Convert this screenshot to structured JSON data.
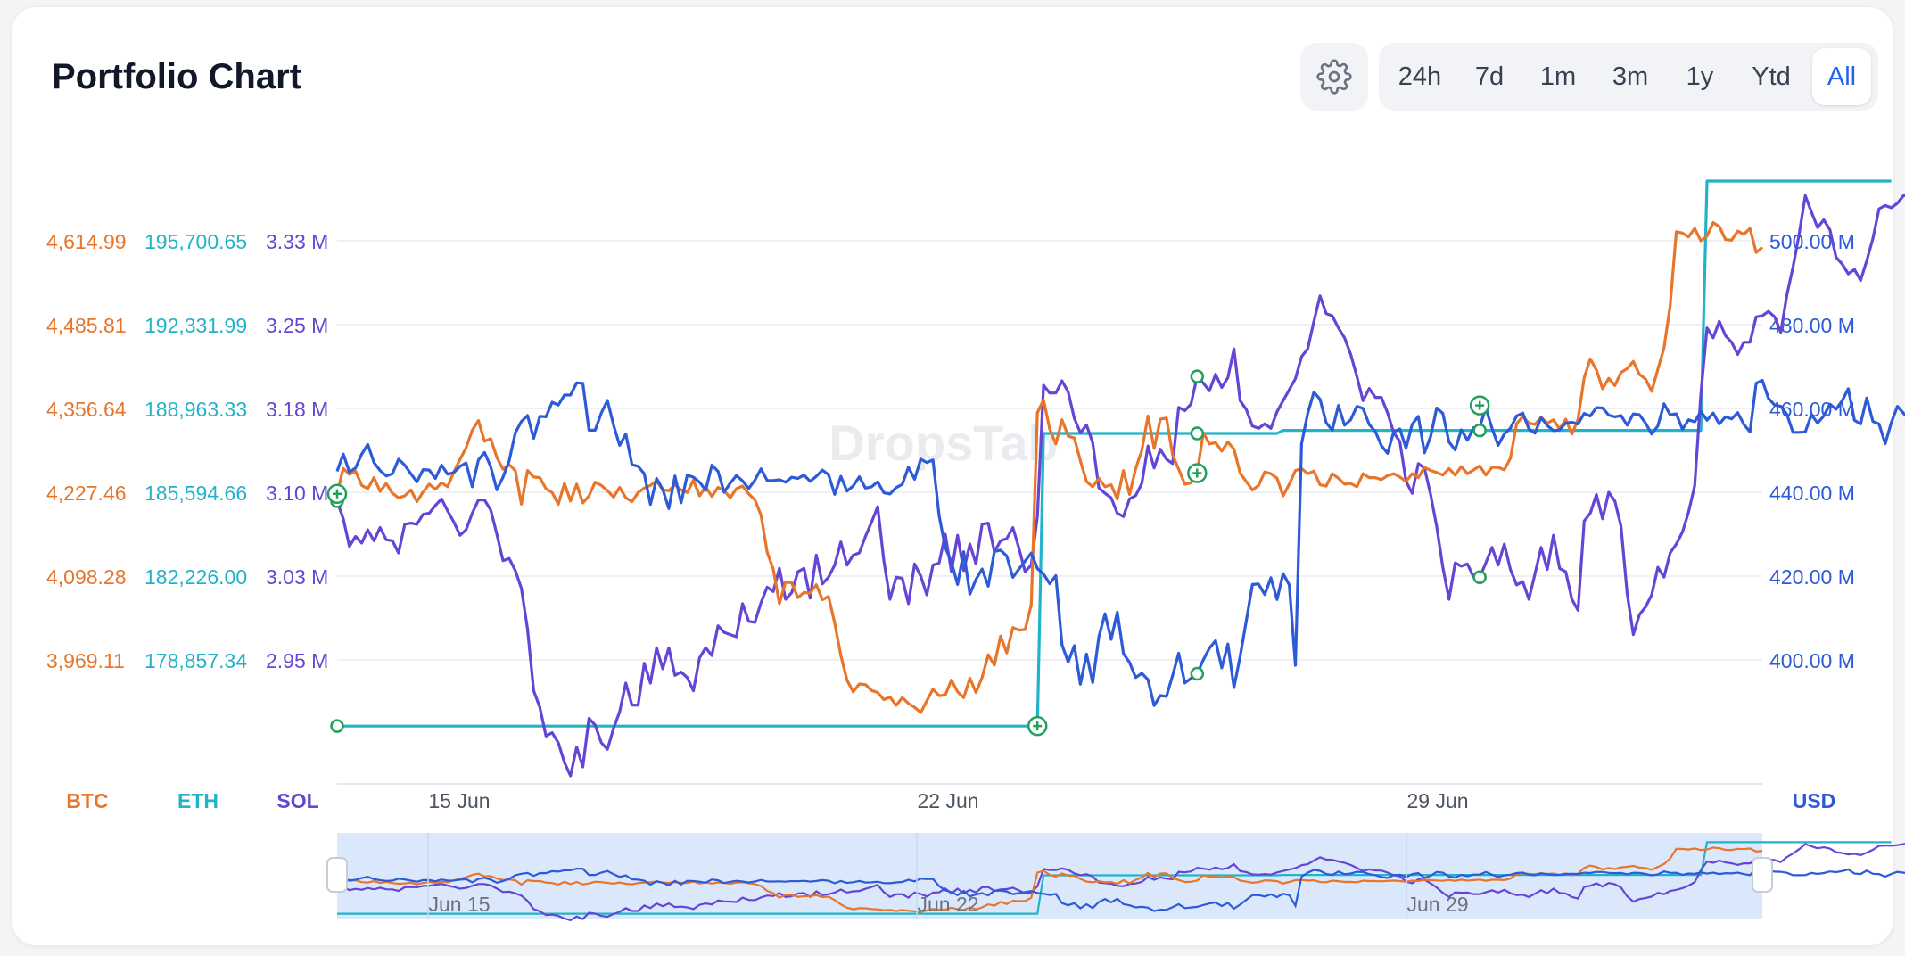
{
  "header": {
    "title": "Portfolio Chart"
  },
  "toolbar": {
    "settings_icon": "gear-icon",
    "ranges": [
      {
        "label": "24h",
        "active": false
      },
      {
        "label": "7d",
        "active": false
      },
      {
        "label": "1m",
        "active": false
      },
      {
        "label": "3m",
        "active": false
      },
      {
        "label": "1y",
        "active": false
      },
      {
        "label": "Ytd",
        "active": false
      },
      {
        "label": "All",
        "active": true
      }
    ]
  },
  "watermark": "DropsTab",
  "chart_data": {
    "type": "line",
    "x_ticks": [
      "15 Jun",
      "22 Jun",
      "29 Jun"
    ],
    "navigator_ticks": [
      "Jun 15",
      "Jun 22",
      "Jun 29"
    ],
    "axis_titles": {
      "btc": "BTC",
      "eth": "ETH",
      "sol": "SOL",
      "usd": "USD"
    },
    "left_axes": {
      "btc": [
        "4,614.99",
        "4,485.81",
        "4,356.64",
        "4,227.46",
        "4,098.28",
        "3,969.11"
      ],
      "eth": [
        "195,700.65",
        "192,331.99",
        "188,963.33",
        "185,594.66",
        "182,226.00",
        "178,857.34"
      ],
      "sol": [
        "3.33 M",
        "3.25 M",
        "3.18 M",
        "3.10 M",
        "3.03 M",
        "2.95 M"
      ]
    },
    "right_axis": [
      "500.00 M",
      "480.00 M",
      "460.00 M",
      "440.00 M",
      "420.00 M",
      "400.00 M"
    ],
    "colors": {
      "btc": "#e8752a",
      "eth": "#22b3c9",
      "sol": "#6545d6",
      "usd": "#2d5bd8",
      "marker": "#21a05b"
    },
    "series": [
      {
        "name": "BTC",
        "color": "#e8752a",
        "values": [
          4225,
          4264,
          4255,
          4260,
          4238,
          4233,
          4250,
          4229,
          4241,
          4226,
          4219,
          4222,
          4231,
          4213,
          4228,
          4240,
          4232,
          4242,
          4236,
          4259,
          4278,
          4296,
          4323,
          4338,
          4306,
          4310,
          4281,
          4263,
          4270,
          4261,
          4209,
          4261,
          4251,
          4250,
          4233,
          4227,
          4209,
          4241,
          4214,
          4240,
          4211,
          4222,
          4243,
          4238,
          4230,
          4220,
          4235,
          4219,
          4213,
          4227,
          4234,
          4238,
          4245,
          4231,
          4230,
          4239,
          4231,
          4227,
          4246,
          4222,
          4236,
          4221,
          4235,
          4230,
          4219,
          4233,
          4237,
          4225,
          4216,
          4192,
          4135,
          4109,
          4056,
          4089,
          4088,
          4065,
          4073,
          4072,
          4085,
          4062,
          4067,
          4026,
          3976,
          3938,
          3920,
          3932,
          3931,
          3922,
          3919,
          3908,
          3912,
          3899,
          3911,
          3902,
          3896,
          3888,
          3906,
          3924,
          3914,
          3915,
          3938,
          3920,
          3911,
          3941,
          3919,
          3942,
          3977,
          3961,
          4006,
          3980,
          4019,
          4015,
          4016,
          4054,
          4350,
          4370,
          4325,
          4302,
          4339,
          4314,
          4311,
          4276,
          4244,
          4236,
          4249,
          4236,
          4239,
          4217,
          4261,
          4224,
          4264,
          4292,
          4345,
          4295,
          4340,
          4342,
          4285,
          4263,
          4240,
          4242,
          4257,
          4319,
          4302,
          4304,
          4291,
          4305,
          4294,
          4257,
          4244,
          4231,
          4238,
          4259,
          4256,
          4249,
          4222,
          4240,
          4261,
          4264,
          4256,
          4260,
          4239,
          4237,
          4256,
          4249,
          4240,
          4241,
          4236,
          4256,
          4250,
          4250,
          4247,
          4253,
          4256,
          4251,
          4244,
          4256,
          4250,
          4266,
          4261,
          4258,
          4254,
          4264,
          4254,
          4267,
          4256,
          4262,
          4268,
          4254,
          4266,
          4266,
          4262,
          4280,
          4333,
          4344,
          4334,
          4332,
          4343,
          4334,
          4339,
          4325,
          4340,
          4317,
          4340,
          4404,
          4433,
          4416,
          4387,
          4403,
          4392,
          4412,
          4418,
          4429,
          4409,
          4402,
          4383,
          4417,
          4450,
          4515,
          4629,
          4627,
          4621,
          4634,
          4615,
          4622,
          4643,
          4637,
          4617,
          4616,
          4630,
          4625,
          4634,
          4597,
          4605
        ]
      },
      {
        "name": "ETH",
        "color": "#22b3c9",
        "values": [
          176200,
          176200,
          176200,
          176200,
          176200,
          176200,
          176200,
          176200,
          176200,
          176200,
          176200,
          176200,
          176200,
          176200,
          176200,
          176200,
          176200,
          176200,
          176200,
          176200,
          176200,
          176200,
          176200,
          176200,
          176200,
          176200,
          176200,
          176200,
          176200,
          176200,
          176200,
          176200,
          176200,
          176200,
          176200,
          176200,
          176200,
          176200,
          176200,
          176200,
          176200,
          176200,
          176200,
          176200,
          176200,
          176200,
          176200,
          176200,
          176200,
          176200,
          176200,
          176200,
          176200,
          176200,
          176200,
          176200,
          176200,
          176200,
          176200,
          176200,
          176200,
          176200,
          176200,
          176200,
          176200,
          176200,
          176200,
          176200,
          176200,
          176200,
          176200,
          176200,
          176200,
          176200,
          176200,
          176200,
          176200,
          176200,
          176200,
          176200,
          176200,
          176200,
          176200,
          176200,
          176200,
          176200,
          176200,
          176200,
          176200,
          176200,
          176200,
          176200,
          176200,
          176200,
          176200,
          176200,
          176200,
          176200,
          176200,
          176200,
          176200,
          176200,
          176200,
          176200,
          176200,
          176200,
          176200,
          176200,
          176200,
          176200,
          176200,
          176200,
          176200,
          176200,
          176200,
          187960,
          187960,
          187960,
          187960,
          187960,
          187960,
          187960,
          187960,
          187960,
          187960,
          187960,
          187960,
          187960,
          187960,
          187960,
          187960,
          187960,
          187960,
          187960,
          187960,
          187960,
          187960,
          187960,
          187960,
          187960,
          187960,
          187960,
          187960,
          187960,
          187960,
          187960,
          187960,
          187960,
          187960,
          187960,
          187960,
          187960,
          187960,
          187960,
          188080,
          188080,
          188080,
          188080,
          188080,
          188080,
          188080,
          188080,
          188080,
          188080,
          188080,
          188080,
          188080,
          188080,
          188080,
          188080,
          188080,
          188080,
          188080,
          188080,
          188080,
          188080,
          188080,
          188080,
          188080,
          188080,
          188080,
          188080,
          188080,
          188080,
          188080,
          188080,
          188080,
          188080,
          188080,
          188080,
          188080,
          188080,
          188080,
          188080,
          188080,
          188080,
          188080,
          188080,
          188080,
          188080,
          188080,
          188080,
          188080,
          188080,
          188080,
          188080,
          188080,
          188080,
          188080,
          188080,
          188080,
          188080,
          188080,
          188080,
          188080,
          188080,
          188080,
          188080,
          188080,
          188080,
          188080,
          188080,
          188080,
          198100,
          198100,
          198100,
          198100,
          198100,
          198100,
          198100,
          198100,
          198100,
          198100,
          198100,
          198100,
          198100,
          198100,
          198100,
          198100,
          198100,
          198100,
          198100,
          198100,
          198100,
          198100,
          198100,
          198100,
          198100,
          198100,
          198100,
          198100,
          198100,
          198100,
          198100
        ]
      },
      {
        "name": "SOL",
        "color": "#6545d6",
        "values": [
          3.094,
          3.078,
          3.053,
          3.062,
          3.056,
          3.068,
          3.058,
          3.07,
          3.059,
          3.058,
          3.047,
          3.073,
          3.074,
          3.073,
          3.082,
          3.083,
          3.09,
          3.096,
          3.085,
          3.075,
          3.063,
          3.068,
          3.083,
          3.095,
          3.095,
          3.086,
          3.064,
          3.04,
          3.042,
          3.031,
          3.015,
          2.978,
          2.922,
          2.907,
          2.881,
          2.884,
          2.875,
          2.857,
          2.845,
          2.871,
          2.853,
          2.897,
          2.891,
          2.875,
          2.869,
          2.888,
          2.903,
          2.929,
          2.909,
          2.909,
          2.947,
          2.929,
          2.961,
          2.942,
          2.961,
          2.936,
          2.939,
          2.934,
          2.922,
          2.952,
          2.961,
          2.954,
          2.981,
          2.975,
          2.973,
          2.971,
          3.001,
          2.985,
          2.984,
          3.002,
          3.016,
          3.012,
          3.033,
          3.005,
          3.011,
          3.03,
          3.033,
          3.006,
          3.045,
          3.019,
          3.025,
          3.036,
          3.057,
          3.036,
          3.045,
          3.047,
          3.062,
          3.075,
          3.089,
          3.04,
          3.005,
          3.025,
          3.024,
          3.001,
          3.037,
          3.026,
          3.009,
          3.036,
          3.038,
          3.064,
          3.03,
          3.063,
          3.031,
          3.055,
          3.037,
          3.073,
          3.074,
          3.048,
          3.058,
          3.06,
          3.07,
          3.051,
          3.03,
          3.036,
          3.08,
          3.199,
          3.192,
          3.192,
          3.203,
          3.193,
          3.169,
          3.156,
          3.163,
          3.147,
          3.106,
          3.101,
          3.097,
          3.083,
          3.08,
          3.096,
          3.099,
          3.11,
          3.144,
          3.124,
          3.141,
          3.132,
          3.128,
          3.179,
          3.176,
          3.182,
          3.207,
          3.201,
          3.194,
          3.209,
          3.197,
          3.206,
          3.232,
          3.185,
          3.177,
          3.162,
          3.16,
          3.164,
          3.16,
          3.175,
          3.185,
          3.195,
          3.205,
          3.225,
          3.232,
          3.257,
          3.28,
          3.264,
          3.262,
          3.251,
          3.242,
          3.227,
          3.207,
          3.185,
          3.196,
          3.188,
          3.188,
          3.174,
          3.156,
          3.148,
          3.112,
          3.101,
          3.128,
          3.124,
          3.1,
          3.071,
          3.034,
          3.005,
          3.038,
          3.035,
          3.037,
          3.025,
          3.025,
          3.038,
          3.052,
          3.036,
          3.055,
          3.032,
          3.018,
          3.021,
          3.005,
          3.028,
          3.052,
          3.032,
          3.063,
          3.033,
          3.03,
          3.005,
          2.995,
          3.076,
          3.083,
          3.1,
          3.078,
          3.102,
          3.094,
          3.071,
          3.01,
          2.973,
          2.991,
          2.998,
          3.009,
          3.034,
          3.025,
          3.047,
          3.055,
          3.066,
          3.084,
          3.108,
          3.191,
          3.251,
          3.242,
          3.257,
          3.244,
          3.238,
          3.227,
          3.238,
          3.238,
          3.261,
          3.262,
          3.266,
          3.261,
          3.247,
          3.281,
          3.306,
          3.336,
          3.371,
          3.356,
          3.342,
          3.349,
          3.34,
          3.315,
          3.309,
          3.3,
          3.304,
          3.294,
          3.312,
          3.332,
          3.359,
          3.362,
          3.36,
          3.364,
          3.371,
          3.371
        ]
      },
      {
        "name": "USD",
        "color": "#2d5bd8",
        "values": [
          445.0,
          449.1,
          444.8,
          445.8,
          449.1,
          451.4,
          447.1,
          445.2,
          443.9,
          444.4,
          447.9,
          446.5,
          444.4,
          442.5,
          445.4,
          445.3,
          443.3,
          446.5,
          444.3,
          444.7,
          446.2,
          447.0,
          441.3,
          447.7,
          449.5,
          446.1,
          440.6,
          443.6,
          447.5,
          454.2,
          456.9,
          458.3,
          452.9,
          458.1,
          458.0,
          461.5,
          460.8,
          463.2,
          463.2,
          466.1,
          466.0,
          454.8,
          454.8,
          458.9,
          461.9,
          456.0,
          451.2,
          453.9,
          446.6,
          446.2,
          444.4,
          437.1,
          443.3,
          440.7,
          436.1,
          443.9,
          437.5,
          444.1,
          443.6,
          442.4,
          440.5,
          446.5,
          445.0,
          440.0,
          442.2,
          444.0,
          442.7,
          440.9,
          442.9,
          445.6,
          442.8,
          442.8,
          443.0,
          442.4,
          443.6,
          443.3,
          444.1,
          442.6,
          443.8,
          445.3,
          444.2,
          439.5,
          443.8,
          440.3,
          441.5,
          443.7,
          441.0,
          441.3,
          442.5,
          439.9,
          439.6,
          441.1,
          441.9,
          446.0,
          443.1,
          447.9,
          447.1,
          447.7,
          434.4,
          426.8,
          423.4,
          418.0,
          425.8,
          415.7,
          419.2,
          421.7,
          417.6,
          425.9,
          426.2,
          424.8,
          419.7,
          421.7,
          423.6,
          425.5,
          421.8,
          420.5,
          418.2,
          420.1,
          403.6,
          399.5,
          403.4,
          394.2,
          401.4,
          394.6,
          405.5,
          411.0,
          404.9,
          411.4,
          401.5,
          399.4,
          395.8,
          396.8,
          395.3,
          389.1,
          391.5,
          391.3,
          396.3,
          401.6,
          394.5,
          395.6,
          396.7,
          400.0,
          402.8,
          404.6,
          398.1,
          403.8,
          393.4,
          400.8,
          409.3,
          418.0,
          418.1,
          415.6,
          419.6,
          414.4,
          420.6,
          417.9,
          398.7,
          451.6,
          458.8,
          463.9,
          462.2,
          456.6,
          454.8,
          460.7,
          456.0,
          457.3,
          460.5,
          460.0,
          456.2,
          454.5,
          451.1,
          449.3,
          454.4,
          455.1,
          450.5,
          456.2,
          458.1,
          449.4,
          453.3,
          460.1,
          458.8,
          452.0,
          450.1,
          454.9,
          452.4,
          455.4,
          455.6,
          460.1,
          455.3,
          451.2,
          453.9,
          455.3,
          458.2,
          458.9,
          455.1,
          454.1,
          457.8,
          455.9,
          454.7,
          454.9,
          456.5,
          456.7,
          456.3,
          458.8,
          458.2,
          460.2,
          460.1,
          458.4,
          458.0,
          458.3,
          456.0,
          458.7,
          458.5,
          456.5,
          453.9,
          455.8,
          461.1,
          458.5,
          458.7,
          455.0,
          457.3,
          456.8,
          459.3,
          457.2,
          458.9,
          456.3,
          458.0,
          457.5,
          459.0,
          456.2,
          454.4,
          466.0,
          466.7,
          462.4,
          460.8,
          460.5,
          458.6,
          454.3,
          454.3,
          454.4,
          458.5,
          456.5,
          458.2,
          461.0,
          459.8,
          461.8,
          464.7,
          457.2,
          456.3,
          462.5,
          456.9,
          456.3,
          451.6,
          456.6,
          460.5,
          458.8,
          457.4,
          454.2,
          482.4,
          484.9,
          476.4,
          476.9,
          469.1,
          474.8,
          472.6,
          469.3,
          476.6,
          469.3,
          467.4,
          470.6,
          469.1,
          465.9,
          471.3,
          472.3,
          469.7,
          471.8,
          476.1,
          479.3,
          477.5,
          478.0,
          489.4,
          505.4,
          509.1,
          508.2,
          505.5,
          511.5,
          508.8,
          504.6,
          502.8,
          507.1,
          502.9,
          508.5,
          509.8,
          507.5,
          508.4,
          507.3,
          511.2,
          511.5,
          510.6,
          505.3,
          511.7,
          513.6,
          513.5
        ]
      }
    ]
  }
}
